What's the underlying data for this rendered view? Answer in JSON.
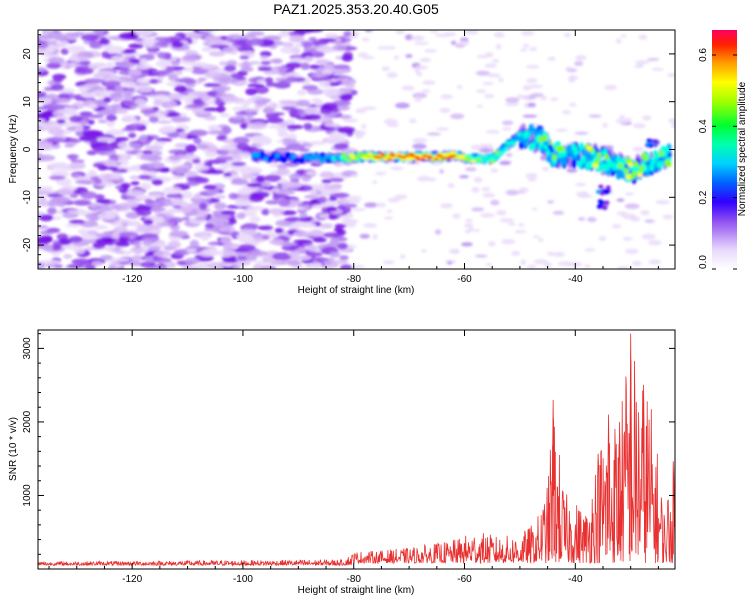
{
  "title": "PAZ1.2025.353.20.40.G05",
  "chart_data": [
    {
      "type": "heatmap",
      "title": "PAZ1.2025.353.20.40.G05",
      "xlabel": "Height of straight line (km)",
      "ylabel": "Frequency (Hz)",
      "xlim": [
        -137,
        -22
      ],
      "ylim": [
        -25,
        25
      ],
      "xticks": [
        -120,
        -100,
        -80,
        -60,
        -40
      ],
      "xtick_labels": [
        "-120",
        "-100",
        "-80",
        "-60",
        "-40"
      ],
      "yticks": [
        -20,
        -10,
        0,
        10,
        20
      ],
      "ytick_labels": [
        "-20",
        "-10",
        "0",
        "10",
        "20"
      ],
      "colorbar": {
        "label": "Normalized spectral amplitude",
        "range": [
          0,
          0.67
        ],
        "ticks": [
          0,
          0.2,
          0.4,
          0.6
        ],
        "tick_labels": [
          "0.0",
          "0.2",
          "0.4",
          "0.6"
        ],
        "colormap": [
          "#ffffff",
          "#e8d9fb",
          "#b080f0",
          "#7b18e8",
          "#0000ff",
          "#00a0ff",
          "#00ffe0",
          "#00ff40",
          "#80ff00",
          "#ffff00",
          "#ffa000",
          "#ff2000",
          "#ff0060"
        ]
      },
      "signal_track": [
        {
          "x": -98,
          "y": -1.5,
          "amp": 0.25
        },
        {
          "x": -90,
          "y": -1.8,
          "amp": 0.2
        },
        {
          "x": -83,
          "y": -1.8,
          "amp": 0.3
        },
        {
          "x": -78,
          "y": -1.5,
          "amp": 0.55
        },
        {
          "x": -76,
          "y": -1.5,
          "amp": 0.6
        },
        {
          "x": -70,
          "y": -1.5,
          "amp": 0.62
        },
        {
          "x": -66,
          "y": -1.5,
          "amp": 0.58
        },
        {
          "x": -64,
          "y": -1.5,
          "amp": 0.6
        },
        {
          "x": -62,
          "y": -1.2,
          "amp": 0.62
        },
        {
          "x": -59,
          "y": -2.0,
          "amp": 0.45
        },
        {
          "x": -55,
          "y": -2.0,
          "amp": 0.38
        },
        {
          "x": -50,
          "y": 3.0,
          "amp": 0.3
        },
        {
          "x": -46,
          "y": 2.0,
          "amp": 0.35
        },
        {
          "x": -44,
          "y": -1.0,
          "amp": 0.4
        },
        {
          "x": -41,
          "y": -1.0,
          "amp": 0.3
        },
        {
          "x": -37,
          "y": -1.5,
          "amp": 0.45
        },
        {
          "x": -33,
          "y": -3.0,
          "amp": 0.35
        },
        {
          "x": -30,
          "y": -4.5,
          "amp": 0.5
        },
        {
          "x": -26,
          "y": -2.5,
          "amp": 0.35
        },
        {
          "x": -23,
          "y": -1.5,
          "amp": 0.4
        }
      ]
    },
    {
      "type": "line",
      "xlabel": "Height of straight line (km)",
      "ylabel": "SNR (10 * v/v)",
      "xlim": [
        -137,
        -22
      ],
      "ylim": [
        0,
        3250
      ],
      "xticks": [
        -120,
        -100,
        -80,
        -60,
        -40
      ],
      "xtick_labels": [
        "-120",
        "-100",
        "-80",
        "-60",
        "-40"
      ],
      "yticks": [
        1000,
        2000,
        3000
      ],
      "ytick_labels": [
        "1000",
        "2000",
        "3000"
      ],
      "color": "#e83030",
      "envelope": {
        "x": [
          -137,
          -120,
          -100,
          -82,
          -80,
          -76,
          -70,
          -62,
          -58,
          -54,
          -50,
          -47,
          -45,
          -44,
          -42,
          -38,
          -36,
          -34,
          -32,
          -30,
          -29,
          -27,
          -25,
          -24,
          -22
        ],
        "base": [
          100,
          110,
          120,
          130,
          230,
          240,
          280,
          380,
          500,
          430,
          450,
          640,
          1100,
          2250,
          1000,
          780,
          1600,
          2050,
          2000,
          3200,
          2700,
          2500,
          1450,
          800,
          1550
        ]
      }
    }
  ]
}
